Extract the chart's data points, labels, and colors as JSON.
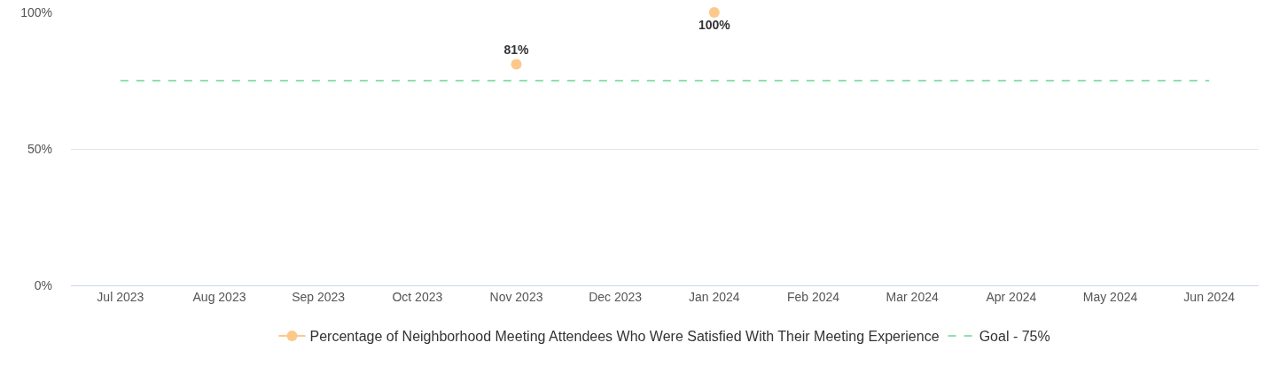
{
  "chart_data": {
    "type": "line",
    "categories": [
      "Jul 2023",
      "Aug 2023",
      "Sep 2023",
      "Oct 2023",
      "Nov 2023",
      "Dec 2023",
      "Jan 2024",
      "Feb 2024",
      "Mar 2024",
      "Apr 2024",
      "May 2024",
      "Jun 2024"
    ],
    "series": [
      {
        "type": "scatter",
        "name": "Percentage of Neighborhood Meeting Attendees Who Were Satisfied With Their Meeting Experience",
        "color": "#fcc98a",
        "marker": "circle",
        "values": [
          null,
          null,
          null,
          null,
          81,
          null,
          100,
          null,
          null,
          null,
          null,
          null
        ],
        "value_labels": [
          null,
          null,
          null,
          null,
          "81%",
          null,
          "100%",
          null,
          null,
          null,
          null,
          null
        ]
      },
      {
        "name": "Goal - 75%",
        "color": "#8ae3ac",
        "marker": "none",
        "line_style": "dashed",
        "values": [
          75,
          75,
          75,
          75,
          75,
          75,
          75,
          75,
          75,
          75,
          75,
          75
        ]
      }
    ],
    "ylim": [
      0,
      100
    ],
    "yticks": [
      {
        "value": 0,
        "label": "0%"
      },
      {
        "value": 50,
        "label": "50%"
      },
      {
        "value": 100,
        "label": "100%"
      }
    ],
    "grid": "y",
    "legend": "bottom"
  }
}
